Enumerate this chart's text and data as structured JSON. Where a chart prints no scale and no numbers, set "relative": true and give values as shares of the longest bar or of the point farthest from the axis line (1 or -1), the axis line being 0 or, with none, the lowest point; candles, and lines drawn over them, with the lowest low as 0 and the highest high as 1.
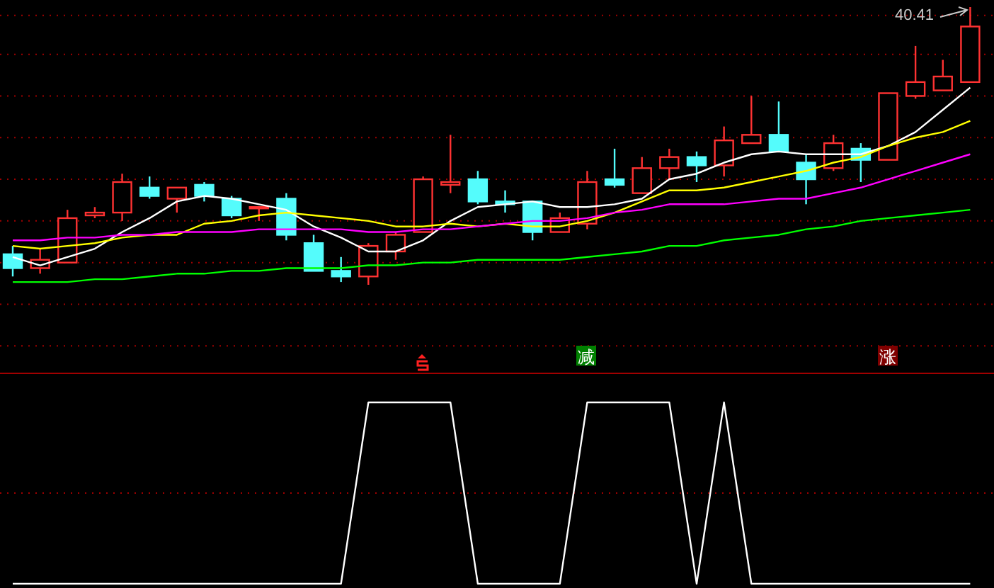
{
  "chart_data": [
    {
      "type": "candlestick",
      "relative": true,
      "ref_lines": [
        {
          "axis": "y",
          "value": 0.97,
          "color": "#a00000",
          "line_style": "dotted"
        },
        {
          "axis": "y",
          "value": 0.83,
          "color": "#a00000",
          "line_style": "dotted"
        },
        {
          "axis": "y",
          "value": 0.68,
          "color": "#a00000",
          "line_style": "dotted"
        },
        {
          "axis": "y",
          "value": 0.53,
          "color": "#a00000",
          "line_style": "dotted"
        },
        {
          "axis": "y",
          "value": 0.38,
          "color": "#a00000",
          "line_style": "dotted"
        },
        {
          "axis": "y",
          "value": 0.23,
          "color": "#a00000",
          "line_style": "dotted"
        },
        {
          "axis": "y",
          "value": 0.08,
          "color": "#a00000",
          "line_style": "dotted"
        },
        {
          "axis": "y",
          "value": -0.07,
          "color": "#a00000",
          "line_style": "dotted"
        },
        {
          "axis": "y",
          "value": -0.22,
          "color": "#a00000",
          "line_style": "dotted"
        }
      ],
      "categories": [
        null,
        null,
        null,
        null,
        null,
        null,
        null,
        null,
        null,
        null,
        null,
        null,
        null,
        null,
        null,
        null,
        null,
        null,
        null,
        null,
        null,
        null,
        null,
        null,
        null,
        null,
        null,
        null,
        null,
        null,
        null,
        null,
        null,
        null,
        null,
        null
      ],
      "ohlc": [
        [
          0.11,
          0.14,
          0.03,
          0.06
        ],
        [
          0.06,
          0.13,
          0.04,
          0.09
        ],
        [
          0.08,
          0.27,
          0.08,
          0.24
        ],
        [
          0.25,
          0.28,
          0.24,
          0.26
        ],
        [
          0.26,
          0.4,
          0.23,
          0.37
        ],
        [
          0.35,
          0.39,
          0.31,
          0.32
        ],
        [
          0.31,
          0.35,
          0.26,
          0.35
        ],
        [
          0.36,
          0.37,
          0.3,
          0.32
        ],
        [
          0.31,
          0.32,
          0.24,
          0.25
        ],
        [
          0.28,
          0.28,
          0.23,
          0.28
        ],
        [
          0.31,
          0.33,
          0.16,
          0.18
        ],
        [
          0.15,
          0.18,
          0.05,
          0.05
        ],
        [
          0.05,
          0.1,
          0.01,
          0.03
        ],
        [
          0.03,
          0.15,
          0.0,
          0.14
        ],
        [
          0.12,
          0.19,
          0.09,
          0.18
        ],
        [
          0.19,
          0.39,
          0.19,
          0.38
        ],
        [
          0.36,
          0.54,
          0.33,
          0.37
        ],
        [
          0.38,
          0.41,
          0.29,
          0.3
        ],
        [
          0.3,
          0.34,
          0.26,
          0.29
        ],
        [
          0.3,
          0.3,
          0.16,
          0.19
        ],
        [
          0.19,
          0.26,
          0.19,
          0.24
        ],
        [
          0.22,
          0.41,
          0.2,
          0.37
        ],
        [
          0.38,
          0.49,
          0.35,
          0.36
        ],
        [
          0.33,
          0.46,
          0.33,
          0.42
        ],
        [
          0.42,
          0.49,
          0.38,
          0.46
        ],
        [
          0.46,
          0.48,
          0.37,
          0.43
        ],
        [
          0.43,
          0.57,
          0.39,
          0.52
        ],
        [
          0.51,
          0.68,
          0.51,
          0.54
        ],
        [
          0.54,
          0.66,
          0.48,
          0.48
        ],
        [
          0.44,
          0.47,
          0.29,
          0.38
        ],
        [
          0.42,
          0.54,
          0.41,
          0.51
        ],
        [
          0.49,
          0.51,
          0.37,
          0.45
        ],
        [
          0.45,
          0.69,
          0.45,
          0.69
        ],
        [
          0.68,
          0.86,
          0.67,
          0.73
        ],
        [
          0.7,
          0.81,
          0.7,
          0.75
        ],
        [
          0.73,
          1,
          0.73,
          0.93
        ]
      ],
      "colors": [
        "#54fcfc",
        "#ff3232",
        "#ff3232",
        "#ff3232",
        "#ff3232",
        "#54fcfc",
        "#ff3232",
        "#54fcfc",
        "#54fcfc",
        "#ff3232",
        "#54fcfc",
        "#54fcfc",
        "#54fcfc",
        "#ff3232",
        "#ff3232",
        "#ff3232",
        "#ff3232",
        "#54fcfc",
        "#54fcfc",
        "#54fcfc",
        "#ff3232",
        "#ff3232",
        "#54fcfc",
        "#ff3232",
        "#ff3232",
        "#54fcfc",
        "#ff3232",
        "#ff3232",
        "#54fcfc",
        "#54fcfc",
        "#ff3232",
        "#54fcfc",
        "#ff3232",
        "#ff3232",
        "#ff3232",
        "#ff3232"
      ],
      "series": [
        {
          "type": "line",
          "color": "#ffffff",
          "values": [
            0.1,
            0.07,
            0.1,
            0.13,
            0.19,
            0.24,
            0.3,
            0.32,
            0.31,
            0.29,
            0.27,
            0.21,
            0.17,
            0.12,
            0.12,
            0.16,
            0.23,
            0.28,
            0.29,
            0.3,
            0.28,
            0.28,
            0.29,
            0.31,
            0.38,
            0.4,
            0.44,
            0.47,
            0.48,
            0.47,
            0.47,
            0.47,
            0.5,
            0.55,
            0.63,
            0.71
          ]
        },
        {
          "type": "line",
          "color": "#ffff00",
          "values": [
            0.14,
            0.13,
            0.14,
            0.15,
            0.17,
            0.18,
            0.18,
            0.22,
            0.23,
            0.25,
            0.26,
            0.25,
            0.24,
            0.23,
            0.21,
            0.21,
            0.22,
            0.21,
            0.22,
            0.21,
            0.21,
            0.23,
            0.26,
            0.3,
            0.34,
            0.34,
            0.35,
            0.37,
            0.39,
            0.41,
            0.44,
            0.46,
            0.5,
            0.53,
            0.55,
            0.59
          ]
        },
        {
          "type": "line",
          "color": "#ff00ff",
          "values": [
            0.16,
            0.16,
            0.17,
            0.17,
            0.18,
            0.18,
            0.19,
            0.19,
            0.19,
            0.2,
            0.2,
            0.2,
            0.2,
            0.19,
            0.19,
            0.2,
            0.2,
            0.21,
            0.22,
            0.23,
            0.23,
            0.24,
            0.26,
            0.27,
            0.29,
            0.29,
            0.29,
            0.3,
            0.31,
            0.31,
            0.33,
            0.35,
            0.38,
            0.41,
            0.44,
            0.47
          ]
        },
        {
          "type": "line",
          "color": "#00ff00",
          "values": [
            0.01,
            0.01,
            0.01,
            0.02,
            0.02,
            0.03,
            0.04,
            0.04,
            0.05,
            0.05,
            0.06,
            0.06,
            0.06,
            0.07,
            0.07,
            0.08,
            0.08,
            0.09,
            0.09,
            0.09,
            0.09,
            0.1,
            0.11,
            0.12,
            0.14,
            0.14,
            0.16,
            0.17,
            0.18,
            0.2,
            0.21,
            0.23,
            0.24,
            0.25,
            0.26,
            0.27
          ]
        }
      ],
      "annotations": [
        "40.41"
      ]
    },
    {
      "type": "line",
      "relative": true,
      "ref_lines": [
        {
          "axis": "y",
          "value": 0.5,
          "color": "#a00000",
          "line_style": "dotted"
        }
      ],
      "categories": [
        null,
        null,
        null,
        null,
        null,
        null,
        null,
        null,
        null,
        null,
        null,
        null,
        null,
        null,
        null,
        null,
        null,
        null,
        null,
        null,
        null,
        null,
        null,
        null,
        null,
        null,
        null,
        null,
        null,
        null,
        null,
        null,
        null,
        null,
        null,
        null
      ],
      "series": [
        {
          "color": "#ffffff",
          "values": [
            0,
            0,
            0,
            0,
            0,
            0,
            0,
            0,
            0,
            0,
            0,
            0,
            0,
            1,
            1,
            1,
            1,
            0,
            0,
            0,
            0,
            1,
            1,
            1,
            1,
            0,
            1,
            0,
            0,
            0,
            0,
            0,
            0,
            0,
            0,
            0
          ]
        }
      ],
      "annotations": [
        "减",
        "涨"
      ]
    }
  ]
}
